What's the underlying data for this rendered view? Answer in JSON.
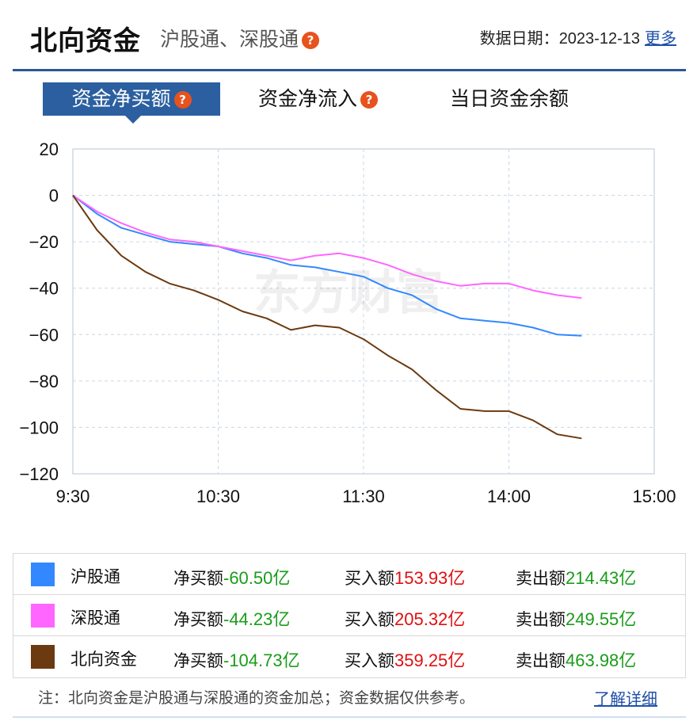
{
  "header": {
    "title": "北向资金",
    "subtitle": "沪股通、深股通",
    "date_label": "数据日期：",
    "date": "2023-12-13",
    "more": "更多"
  },
  "tabs": [
    {
      "label": "资金净买额",
      "active": true
    },
    {
      "label": "资金净流入",
      "active": false
    },
    {
      "label": "当日资金余额",
      "active": false
    }
  ],
  "help_glyph": "?",
  "watermark": "东方财富",
  "chart_data": {
    "type": "line",
    "x_ticks": [
      "9:30",
      "10:30",
      "11:30",
      "14:00",
      "15:00"
    ],
    "y_ticks": [
      "20",
      "0",
      "−20",
      "−40",
      "−60",
      "−80",
      "−100",
      "−120"
    ],
    "ylim": [
      -120,
      20
    ],
    "grid": true,
    "series": [
      {
        "name": "沪股通",
        "color": "#3388ff",
        "x": [
          "9:30",
          "9:40",
          "9:50",
          "10:00",
          "10:10",
          "10:20",
          "10:30",
          "10:40",
          "10:50",
          "11:00",
          "11:10",
          "11:20",
          "11:30",
          "13:10",
          "13:20",
          "13:30",
          "13:40",
          "13:50",
          "14:00",
          "14:10",
          "14:20",
          "14:30"
        ],
        "values": [
          0,
          -8,
          -14,
          -17,
          -20,
          -21,
          -22,
          -25,
          -27,
          -30,
          -31,
          -33,
          -35,
          -40,
          -43,
          -49,
          -53,
          -54,
          -55,
          -57,
          -60,
          -60.5
        ]
      },
      {
        "name": "深股通",
        "color": "#ff66ff",
        "x": [
          "9:30",
          "9:40",
          "9:50",
          "10:00",
          "10:10",
          "10:20",
          "10:30",
          "10:40",
          "10:50",
          "11:00",
          "11:10",
          "11:20",
          "11:30",
          "13:10",
          "13:20",
          "13:30",
          "13:40",
          "13:50",
          "14:00",
          "14:10",
          "14:20",
          "14:30"
        ],
        "values": [
          0,
          -7,
          -12,
          -16,
          -19,
          -20,
          -22,
          -24,
          -26,
          -28,
          -26,
          -25,
          -27,
          -30,
          -34,
          -37,
          -39,
          -38,
          -38,
          -41,
          -43,
          -44.23
        ]
      },
      {
        "name": "北向资金",
        "color": "#6b3a10",
        "x": [
          "9:30",
          "9:40",
          "9:50",
          "10:00",
          "10:10",
          "10:20",
          "10:30",
          "10:40",
          "10:50",
          "11:00",
          "11:10",
          "11:20",
          "11:30",
          "13:10",
          "13:20",
          "13:30",
          "13:40",
          "13:50",
          "14:00",
          "14:10",
          "14:20",
          "14:30"
        ],
        "values": [
          0,
          -15,
          -26,
          -33,
          -38,
          -41,
          -45,
          -50,
          -53,
          -58,
          -56,
          -57,
          -62,
          -69,
          -75,
          -84,
          -92,
          -93,
          -93,
          -97,
          -103,
          -104.73
        ]
      }
    ]
  },
  "legend": {
    "net_label": "净买额",
    "buy_label": "买入额",
    "sell_label": "卖出额",
    "rows": [
      {
        "name": "沪股通",
        "color": "#3388ff",
        "net": "-60.50亿",
        "buy": "153.93亿",
        "sell": "214.43亿"
      },
      {
        "name": "深股通",
        "color": "#ff66ff",
        "net": "-44.23亿",
        "buy": "205.32亿",
        "sell": "249.55亿"
      },
      {
        "name": "北向资金",
        "color": "#6b3a10",
        "net": "-104.73亿",
        "buy": "359.25亿",
        "sell": "463.98亿"
      }
    ]
  },
  "footer": {
    "note": "注：北向资金是沪股通与深股通的资金加总；资金数据仅供参考。",
    "link": "了解详细"
  }
}
